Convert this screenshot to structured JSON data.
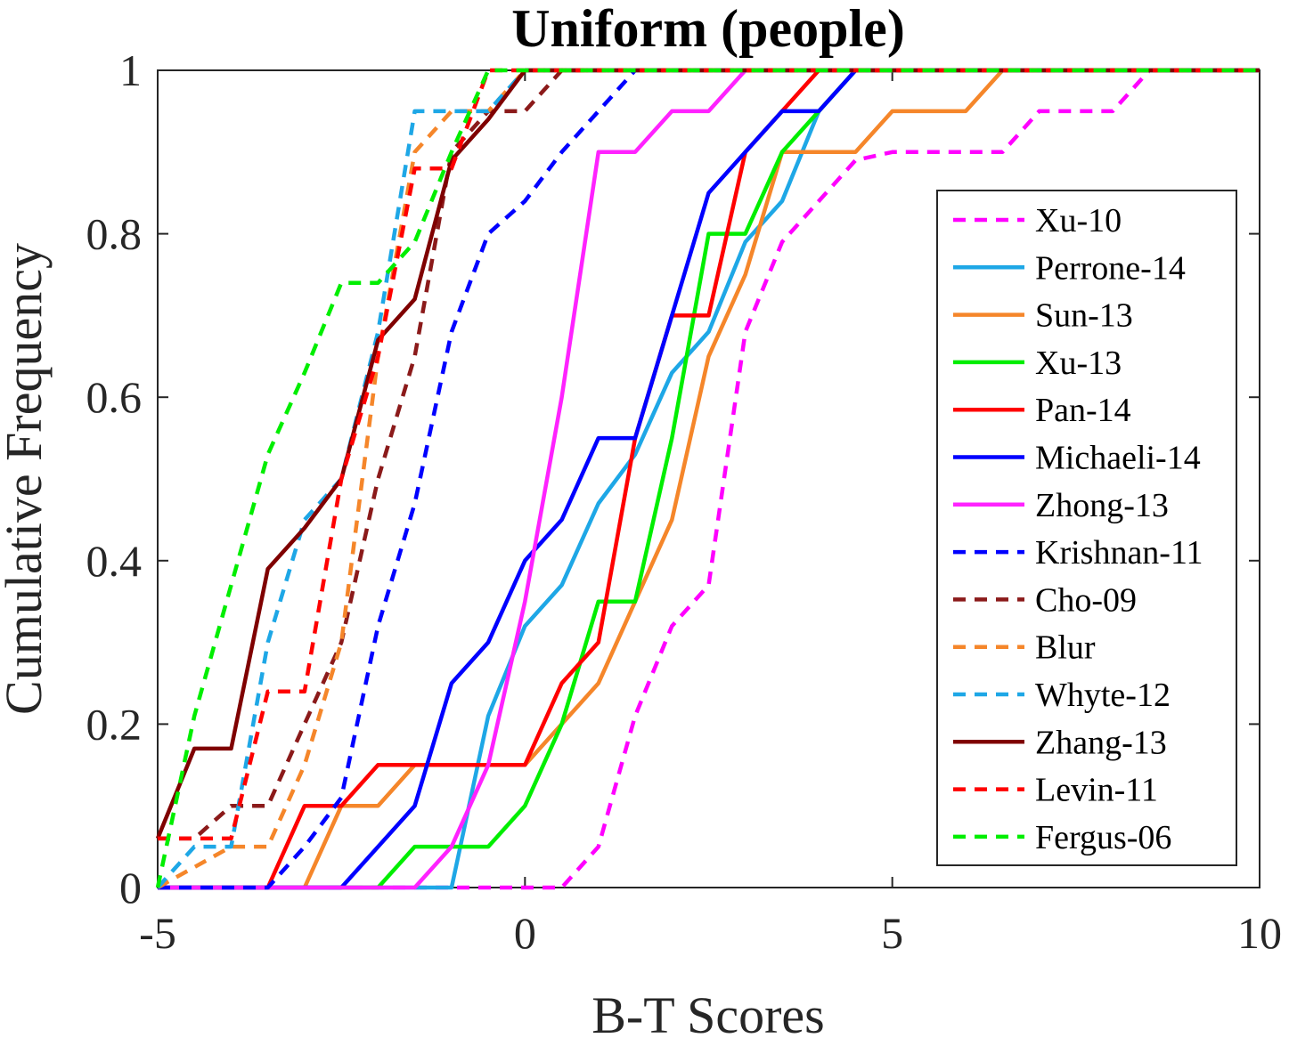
{
  "chart_data": {
    "type": "line",
    "title": "Uniform (people)",
    "xlabel": "B-T Scores",
    "ylabel": "Cumulative Frequency",
    "xlim": [
      -5,
      10
    ],
    "ylim": [
      0,
      1
    ],
    "xticks": [
      -5,
      0,
      5,
      10
    ],
    "xtick_labels": [
      "-5",
      "0",
      "5",
      "10"
    ],
    "yticks": [
      0,
      0.2,
      0.4,
      0.6,
      0.8,
      1
    ],
    "ytick_labels": [
      "0",
      "0.2",
      "0.4",
      "0.6",
      "0.8",
      "1"
    ],
    "grid": false,
    "legend_position": "right",
    "series": [
      {
        "name": "Xu-10",
        "color": "#ff00ff",
        "dash": true,
        "points": [
          [
            -5,
            0
          ],
          [
            0.5,
            0
          ],
          [
            1,
            0.05
          ],
          [
            1.5,
            0.21
          ],
          [
            2,
            0.32
          ],
          [
            2.5,
            0.37
          ],
          [
            3,
            0.68
          ],
          [
            3.5,
            0.79
          ],
          [
            4,
            0.84
          ],
          [
            4.5,
            0.89
          ],
          [
            5,
            0.9
          ],
          [
            6.5,
            0.9
          ],
          [
            7,
            0.95
          ],
          [
            8,
            0.95
          ],
          [
            8.5,
            1
          ],
          [
            10,
            1
          ]
        ]
      },
      {
        "name": "Perrone-14",
        "color": "#1ea7e6",
        "dash": false,
        "points": [
          [
            -5,
            0
          ],
          [
            -1,
            0
          ],
          [
            -0.5,
            0.21
          ],
          [
            0,
            0.32
          ],
          [
            0.5,
            0.37
          ],
          [
            1,
            0.47
          ],
          [
            1.5,
            0.53
          ],
          [
            2,
            0.63
          ],
          [
            2.5,
            0.68
          ],
          [
            3,
            0.79
          ],
          [
            3.5,
            0.84
          ],
          [
            4,
            0.95
          ],
          [
            4.5,
            1
          ],
          [
            10,
            1
          ]
        ]
      },
      {
        "name": "Sun-13",
        "color": "#f5862a",
        "dash": false,
        "points": [
          [
            -5,
            0
          ],
          [
            -3,
            0
          ],
          [
            -2.5,
            0.1
          ],
          [
            -2,
            0.1
          ],
          [
            -1.5,
            0.15
          ],
          [
            0,
            0.15
          ],
          [
            0.5,
            0.2
          ],
          [
            1,
            0.25
          ],
          [
            1.5,
            0.35
          ],
          [
            2,
            0.45
          ],
          [
            2.5,
            0.65
          ],
          [
            3,
            0.75
          ],
          [
            3.5,
            0.9
          ],
          [
            4.5,
            0.9
          ],
          [
            5,
            0.95
          ],
          [
            6,
            0.95
          ],
          [
            6.5,
            1
          ],
          [
            10,
            1
          ]
        ]
      },
      {
        "name": "Xu-13",
        "color": "#00ee00",
        "dash": false,
        "points": [
          [
            -5,
            0
          ],
          [
            -2,
            0
          ],
          [
            -1.5,
            0.05
          ],
          [
            -0.5,
            0.05
          ],
          [
            0,
            0.1
          ],
          [
            0.5,
            0.2
          ],
          [
            1,
            0.35
          ],
          [
            1.5,
            0.35
          ],
          [
            2,
            0.55
          ],
          [
            2.5,
            0.8
          ],
          [
            3,
            0.8
          ],
          [
            3.5,
            0.9
          ],
          [
            4,
            0.95
          ],
          [
            4.5,
            1
          ],
          [
            10,
            1
          ]
        ]
      },
      {
        "name": "Pan-14",
        "color": "#ff0000",
        "dash": false,
        "points": [
          [
            -5,
            0
          ],
          [
            -3.5,
            0
          ],
          [
            -3,
            0.1
          ],
          [
            -2.5,
            0.1
          ],
          [
            -2,
            0.15
          ],
          [
            0,
            0.15
          ],
          [
            0.5,
            0.25
          ],
          [
            1,
            0.3
          ],
          [
            1.5,
            0.55
          ],
          [
            2,
            0.7
          ],
          [
            2.5,
            0.7
          ],
          [
            3,
            0.9
          ],
          [
            3.5,
            0.95
          ],
          [
            4,
            1
          ],
          [
            10,
            1
          ]
        ]
      },
      {
        "name": "Michaeli-14",
        "color": "#0000ff",
        "dash": false,
        "points": [
          [
            -5,
            0
          ],
          [
            -2.5,
            0
          ],
          [
            -2,
            0.05
          ],
          [
            -1.5,
            0.1
          ],
          [
            -1,
            0.25
          ],
          [
            -0.5,
            0.3
          ],
          [
            0,
            0.4
          ],
          [
            0.5,
            0.45
          ],
          [
            1,
            0.55
          ],
          [
            1.5,
            0.55
          ],
          [
            2,
            0.7
          ],
          [
            2.5,
            0.85
          ],
          [
            3,
            0.9
          ],
          [
            3.5,
            0.95
          ],
          [
            4,
            0.95
          ],
          [
            4.5,
            1
          ],
          [
            10,
            1
          ]
        ]
      },
      {
        "name": "Zhong-13",
        "color": "#ff22ff",
        "dash": false,
        "points": [
          [
            -5,
            0
          ],
          [
            -1.5,
            0
          ],
          [
            -1,
            0.05
          ],
          [
            -0.5,
            0.15
          ],
          [
            0,
            0.35
          ],
          [
            0.5,
            0.6
          ],
          [
            1,
            0.9
          ],
          [
            1.5,
            0.9
          ],
          [
            2,
            0.95
          ],
          [
            2.5,
            0.95
          ],
          [
            3,
            1
          ],
          [
            10,
            1
          ]
        ]
      },
      {
        "name": "Krishnan-11",
        "color": "#0000ff",
        "dash": true,
        "points": [
          [
            -5,
            0
          ],
          [
            -3.5,
            0
          ],
          [
            -3,
            0.05
          ],
          [
            -2.5,
            0.11
          ],
          [
            -2,
            0.32
          ],
          [
            -1.5,
            0.47
          ],
          [
            -1,
            0.68
          ],
          [
            -0.5,
            0.8
          ],
          [
            0,
            0.84
          ],
          [
            0.5,
            0.9
          ],
          [
            1,
            0.95
          ],
          [
            1.5,
            1
          ],
          [
            10,
            1
          ]
        ]
      },
      {
        "name": "Cho-09",
        "color": "#8b1a1a",
        "dash": true,
        "points": [
          [
            -5,
            0.06
          ],
          [
            -4.5,
            0.06
          ],
          [
            -4,
            0.1
          ],
          [
            -3.5,
            0.1
          ],
          [
            -3,
            0.2
          ],
          [
            -2.5,
            0.3
          ],
          [
            -2,
            0.5
          ],
          [
            -1.5,
            0.65
          ],
          [
            -1,
            0.9
          ],
          [
            -0.5,
            0.95
          ],
          [
            0,
            0.95
          ],
          [
            0.5,
            1
          ],
          [
            10,
            1
          ]
        ]
      },
      {
        "name": "Blur",
        "color": "#f5862a",
        "dash": true,
        "points": [
          [
            -5,
            0
          ],
          [
            -4,
            0.05
          ],
          [
            -3.5,
            0.05
          ],
          [
            -3,
            0.15
          ],
          [
            -2.5,
            0.3
          ],
          [
            -2,
            0.65
          ],
          [
            -1.5,
            0.9
          ],
          [
            -1,
            0.95
          ],
          [
            -0.5,
            0.95
          ],
          [
            0,
            1
          ],
          [
            10,
            1
          ]
        ]
      },
      {
        "name": "Whyte-12",
        "color": "#1ea7e6",
        "dash": true,
        "points": [
          [
            -5,
            0
          ],
          [
            -4.5,
            0.05
          ],
          [
            -4,
            0.05
          ],
          [
            -3.5,
            0.3
          ],
          [
            -3,
            0.45
          ],
          [
            -2.5,
            0.5
          ],
          [
            -2,
            0.68
          ],
          [
            -1.5,
            0.95
          ],
          [
            -1,
            0.95
          ],
          [
            -0.5,
            0.95
          ],
          [
            0,
            1
          ],
          [
            10,
            1
          ]
        ]
      },
      {
        "name": "Zhang-13",
        "color": "#7f0000",
        "dash": false,
        "points": [
          [
            -5,
            0.06
          ],
          [
            -4.5,
            0.17
          ],
          [
            -4,
            0.17
          ],
          [
            -3.5,
            0.39
          ],
          [
            -3,
            0.44
          ],
          [
            -2.5,
            0.5
          ],
          [
            -2,
            0.67
          ],
          [
            -1.5,
            0.72
          ],
          [
            -1,
            0.89
          ],
          [
            -0.5,
            0.94
          ],
          [
            0,
            1
          ],
          [
            10,
            1
          ]
        ]
      },
      {
        "name": "Levin-11",
        "color": "#ff0000",
        "dash": true,
        "points": [
          [
            -5,
            0.06
          ],
          [
            -4,
            0.06
          ],
          [
            -3.5,
            0.24
          ],
          [
            -3,
            0.24
          ],
          [
            -2.5,
            0.5
          ],
          [
            -2,
            0.65
          ],
          [
            -1.5,
            0.88
          ],
          [
            -1,
            0.88
          ],
          [
            -0.5,
            1
          ],
          [
            10,
            1
          ]
        ]
      },
      {
        "name": "Fergus-06",
        "color": "#00ee00",
        "dash": true,
        "points": [
          [
            -5,
            0
          ],
          [
            -4.5,
            0.21
          ],
          [
            -4,
            0.37
          ],
          [
            -3.5,
            0.53
          ],
          [
            -3,
            0.63
          ],
          [
            -2.5,
            0.74
          ],
          [
            -2,
            0.74
          ],
          [
            -1.5,
            0.79
          ],
          [
            -1,
            0.9
          ],
          [
            -0.5,
            1
          ],
          [
            10,
            1
          ]
        ]
      }
    ]
  }
}
